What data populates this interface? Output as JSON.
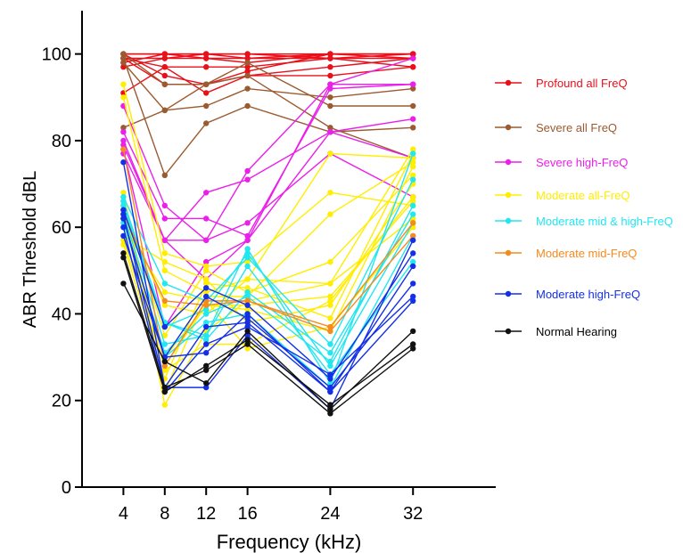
{
  "chart_data": {
    "type": "line",
    "xlabel": "Frequency (kHz)",
    "ylabel": "ABR Threshold dBL",
    "x": [
      4,
      8,
      12,
      16,
      24,
      32
    ],
    "x_ticks": [
      4,
      8,
      12,
      16,
      24,
      32
    ],
    "y_ticks": [
      0,
      20,
      40,
      60,
      80,
      100
    ],
    "xlim": [
      0,
      40
    ],
    "ylim": [
      0,
      110
    ],
    "grid": false,
    "legend_position": "right",
    "series": [
      {
        "name": "Profound all FreQ",
        "color": "#e8101a",
        "lines": [
          [
            100,
            100,
            100,
            100,
            100,
            100
          ],
          [
            99,
            99,
            99,
            99,
            99,
            99
          ],
          [
            100,
            100,
            99,
            98,
            100,
            100
          ],
          [
            97,
            99,
            100,
            99,
            100,
            99
          ],
          [
            99,
            97,
            97,
            97,
            99,
            97
          ],
          [
            91,
            97,
            91,
            95,
            95,
            97
          ],
          [
            99,
            93,
            93,
            96,
            100,
            100
          ],
          [
            100,
            95,
            93,
            95,
            97,
            99
          ],
          [
            98,
            100,
            100,
            100,
            99,
            100
          ]
        ]
      },
      {
        "name": "Severe all FreQ",
        "color": "#9b5a2f",
        "lines": [
          [
            83,
            87,
            88,
            92,
            90,
            92
          ],
          [
            99,
            72,
            84,
            88,
            82,
            83
          ],
          [
            100,
            93,
            93,
            98,
            88,
            88
          ],
          [
            98,
            87,
            93,
            95,
            83,
            76
          ]
        ]
      },
      {
        "name": "Severe high-FreQ",
        "color": "#ea1fea",
        "lines": [
          [
            88,
            65,
            57,
            61,
            77,
            67
          ],
          [
            82,
            62,
            62,
            58,
            92,
            93
          ],
          [
            80,
            57,
            57,
            73,
            93,
            99
          ],
          [
            79,
            57,
            68,
            71,
            82,
            85
          ],
          [
            78,
            37,
            52,
            57,
            93,
            93
          ],
          [
            77,
            57,
            48,
            57,
            82,
            76
          ]
        ]
      },
      {
        "name": "Moderate all-FreQ",
        "color": "#ffee00",
        "lines": [
          [
            93,
            54,
            51,
            52,
            68,
            65
          ],
          [
            90,
            50,
            45,
            48,
            77,
            76
          ],
          [
            68,
            22,
            44,
            44,
            63,
            75
          ],
          [
            67,
            19,
            36,
            43,
            47,
            78
          ],
          [
            66,
            35,
            50,
            45,
            52,
            72
          ],
          [
            65,
            27,
            33,
            33,
            43,
            67
          ],
          [
            64,
            42,
            40,
            48,
            47,
            62
          ],
          [
            62,
            30,
            42,
            41,
            36,
            74
          ],
          [
            60,
            45,
            43,
            32,
            37,
            60
          ],
          [
            58,
            52,
            48,
            38,
            42,
            70
          ],
          [
            57,
            28,
            42,
            42,
            44,
            66
          ],
          [
            56,
            25,
            47,
            46,
            39,
            77
          ]
        ]
      },
      {
        "name": "Moderate mid & high-FreQ",
        "color": "#22e6f0",
        "lines": [
          [
            67,
            47,
            43,
            53,
            33,
            71
          ],
          [
            66,
            38,
            35,
            55,
            24,
            77
          ],
          [
            65,
            38,
            34,
            45,
            31,
            63
          ],
          [
            64,
            37,
            41,
            54,
            28,
            61
          ],
          [
            63,
            33,
            35,
            51,
            26,
            52
          ],
          [
            62,
            30,
            38,
            40,
            23,
            58
          ],
          [
            61,
            31,
            40,
            44,
            29,
            65
          ]
        ]
      },
      {
        "name": "Moderate mid-FreQ",
        "color": "#f58a1f",
        "lines": [
          [
            78,
            28,
            43,
            43,
            37,
            61
          ],
          [
            63,
            43,
            42,
            43,
            36,
            58
          ]
        ]
      },
      {
        "name": "Moderate high-FreQ",
        "color": "#1430e6",
        "lines": [
          [
            75,
            23,
            23,
            35,
            18,
            57
          ],
          [
            64,
            37,
            46,
            42,
            25,
            54
          ],
          [
            63,
            23,
            37,
            38,
            22,
            51
          ],
          [
            62,
            30,
            44,
            39,
            23,
            47
          ],
          [
            60,
            22,
            33,
            37,
            26,
            44
          ],
          [
            58,
            30,
            31,
            40,
            22,
            43
          ]
        ]
      },
      {
        "name": "Normal Hearing",
        "color": "#111111",
        "lines": [
          [
            54,
            23,
            27,
            33,
            17,
            32
          ],
          [
            53,
            22,
            28,
            34,
            19,
            33
          ],
          [
            47,
            29,
            24,
            36,
            18,
            36
          ]
        ]
      }
    ]
  }
}
